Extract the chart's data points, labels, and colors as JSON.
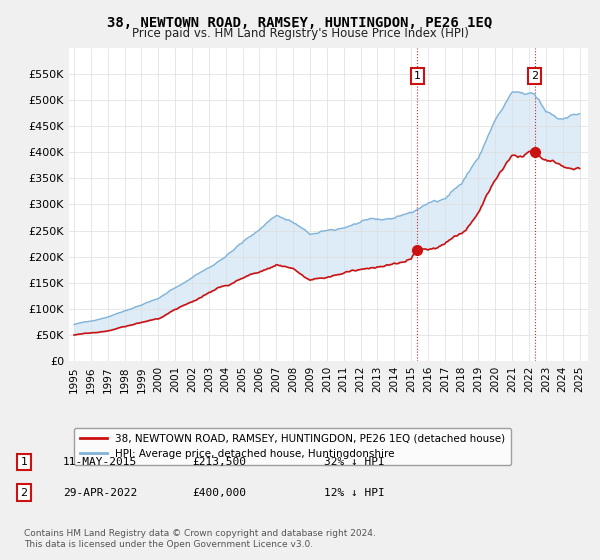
{
  "title": "38, NEWTOWN ROAD, RAMSEY, HUNTINGDON, PE26 1EQ",
  "subtitle": "Price paid vs. HM Land Registry's House Price Index (HPI)",
  "ylim": [
    0,
    600000
  ],
  "yticks": [
    0,
    50000,
    100000,
    150000,
    200000,
    250000,
    300000,
    350000,
    400000,
    450000,
    500000,
    550000
  ],
  "ytick_labels": [
    "£0",
    "£50K",
    "£100K",
    "£150K",
    "£200K",
    "£250K",
    "£300K",
    "£350K",
    "£400K",
    "£450K",
    "£500K",
    "£550K"
  ],
  "hpi_color": "#7fb3d9",
  "hpi_fill_color": "#d6e8f5",
  "price_color": "#cc1111",
  "legend_label1": "38, NEWTOWN ROAD, RAMSEY, HUNTINGDON, PE26 1EQ (detached house)",
  "legend_label2": "HPI: Average price, detached house, Huntingdonshire",
  "annotation1_date": "11-MAY-2015",
  "annotation1_price": "£213,500",
  "annotation1_pct": "32% ↓ HPI",
  "annotation2_date": "29-APR-2022",
  "annotation2_price": "£400,000",
  "annotation2_pct": "12% ↓ HPI",
  "footnote": "Contains HM Land Registry data © Crown copyright and database right 2024.\nThis data is licensed under the Open Government Licence v3.0.",
  "bg_color": "#f0f0f0",
  "plot_bg_color": "#ffffff",
  "sale1_year": 2015.37,
  "sale1_value": 213500,
  "sale2_year": 2022.33,
  "sale2_value": 400000
}
